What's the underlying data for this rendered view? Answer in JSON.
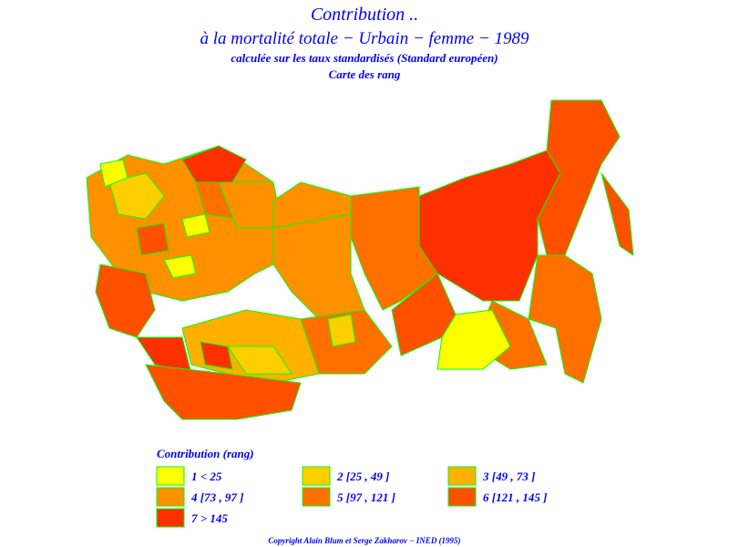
{
  "header": {
    "title": "Contribution ..",
    "subtitle": "à la mortalité totale − Urbain − femme − 1989",
    "note": "calculée sur les taux standardisés (Standard européen)",
    "map_label": "Carte des rang"
  },
  "legend": {
    "title": "Contribution (rang)",
    "items": [
      {
        "label": "1 < 25",
        "color": "#ffff00"
      },
      {
        "label": "2 [25 , 49 ]",
        "color": "#ffd000"
      },
      {
        "label": "3 [49 , 73 ]",
        "color": "#ffb000"
      },
      {
        "label": "4 [73 , 97 ]",
        "color": "#ff9000"
      },
      {
        "label": "5 [97 , 121 ]",
        "color": "#ff7000"
      },
      {
        "label": "6 [121 , 145 ]",
        "color": "#ff5000"
      },
      {
        "label": "7 > 145",
        "color": "#ff3000"
      }
    ]
  },
  "footer": {
    "copyright": "Copyright Alain Blum et Serge Zakharov − INED (1995)"
  }
}
